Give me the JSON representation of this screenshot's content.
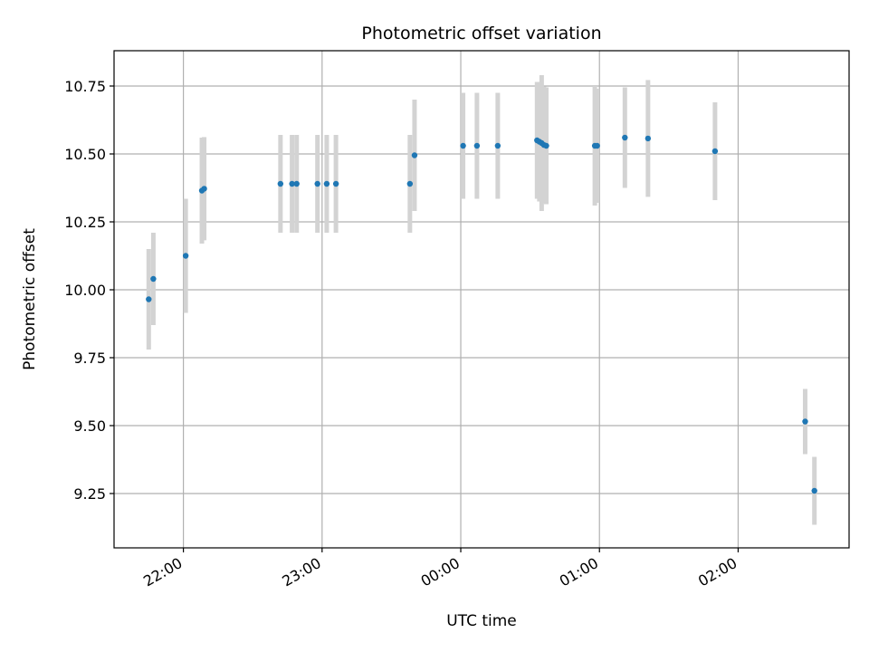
{
  "chart_data": {
    "type": "scatter",
    "title": "Photometric offset variation",
    "xlabel": "UTC time",
    "ylabel": "Photometric offset",
    "grid": true,
    "legend": "none",
    "xlim": [
      "21:30",
      "02:48"
    ],
    "ylim": [
      9.05,
      10.88
    ],
    "x_ticks": [
      "22:00",
      "23:00",
      "00:00",
      "01:00",
      "02:00"
    ],
    "y_ticks": [
      "9.25",
      "9.50",
      "9.75",
      "10.00",
      "10.25",
      "10.50",
      "10.75"
    ],
    "colors": {
      "marker": "#1f77b4",
      "errorbar": "#d3d3d3",
      "grid": "#b0b0b0"
    },
    "series": [
      {
        "points": [
          {
            "x": "21:45",
            "y": 9.965,
            "err": 0.185
          },
          {
            "x": "21:47",
            "y": 10.04,
            "err": 0.17
          },
          {
            "x": "22:01",
            "y": 10.125,
            "err": 0.21
          },
          {
            "x": "22:08",
            "y": 10.365,
            "err": 0.195
          },
          {
            "x": "22:09",
            "y": 10.372,
            "err": 0.19
          },
          {
            "x": "22:42",
            "y": 10.39,
            "err": 0.18
          },
          {
            "x": "22:47",
            "y": 10.39,
            "err": 0.18
          },
          {
            "x": "22:49",
            "y": 10.39,
            "err": 0.18
          },
          {
            "x": "22:58",
            "y": 10.39,
            "err": 0.18
          },
          {
            "x": "23:02",
            "y": 10.39,
            "err": 0.18
          },
          {
            "x": "23:06",
            "y": 10.39,
            "err": 0.18
          },
          {
            "x": "23:38",
            "y": 10.39,
            "err": 0.18
          },
          {
            "x": "23:40",
            "y": 10.495,
            "err": 0.205
          },
          {
            "x": "00:01",
            "y": 10.53,
            "err": 0.195
          },
          {
            "x": "00:07",
            "y": 10.53,
            "err": 0.195
          },
          {
            "x": "00:16",
            "y": 10.53,
            "err": 0.195
          },
          {
            "x": "00:33",
            "y": 10.55,
            "err": 0.215
          },
          {
            "x": "00:34",
            "y": 10.545,
            "err": 0.22
          },
          {
            "x": "00:35",
            "y": 10.54,
            "err": 0.25
          },
          {
            "x": "00:36",
            "y": 10.533,
            "err": 0.215
          },
          {
            "x": "00:37",
            "y": 10.53,
            "err": 0.215
          },
          {
            "x": "00:58",
            "y": 10.53,
            "err": 0.22
          },
          {
            "x": "00:59",
            "y": 10.53,
            "err": 0.21
          },
          {
            "x": "01:11",
            "y": 10.56,
            "err": 0.185
          },
          {
            "x": "01:21",
            "y": 10.557,
            "err": 0.215
          },
          {
            "x": "01:50",
            "y": 10.51,
            "err": 0.18
          },
          {
            "x": "02:29",
            "y": 9.515,
            "err": 0.12
          },
          {
            "x": "02:33",
            "y": 9.26,
            "err": 0.125
          }
        ]
      }
    ]
  }
}
